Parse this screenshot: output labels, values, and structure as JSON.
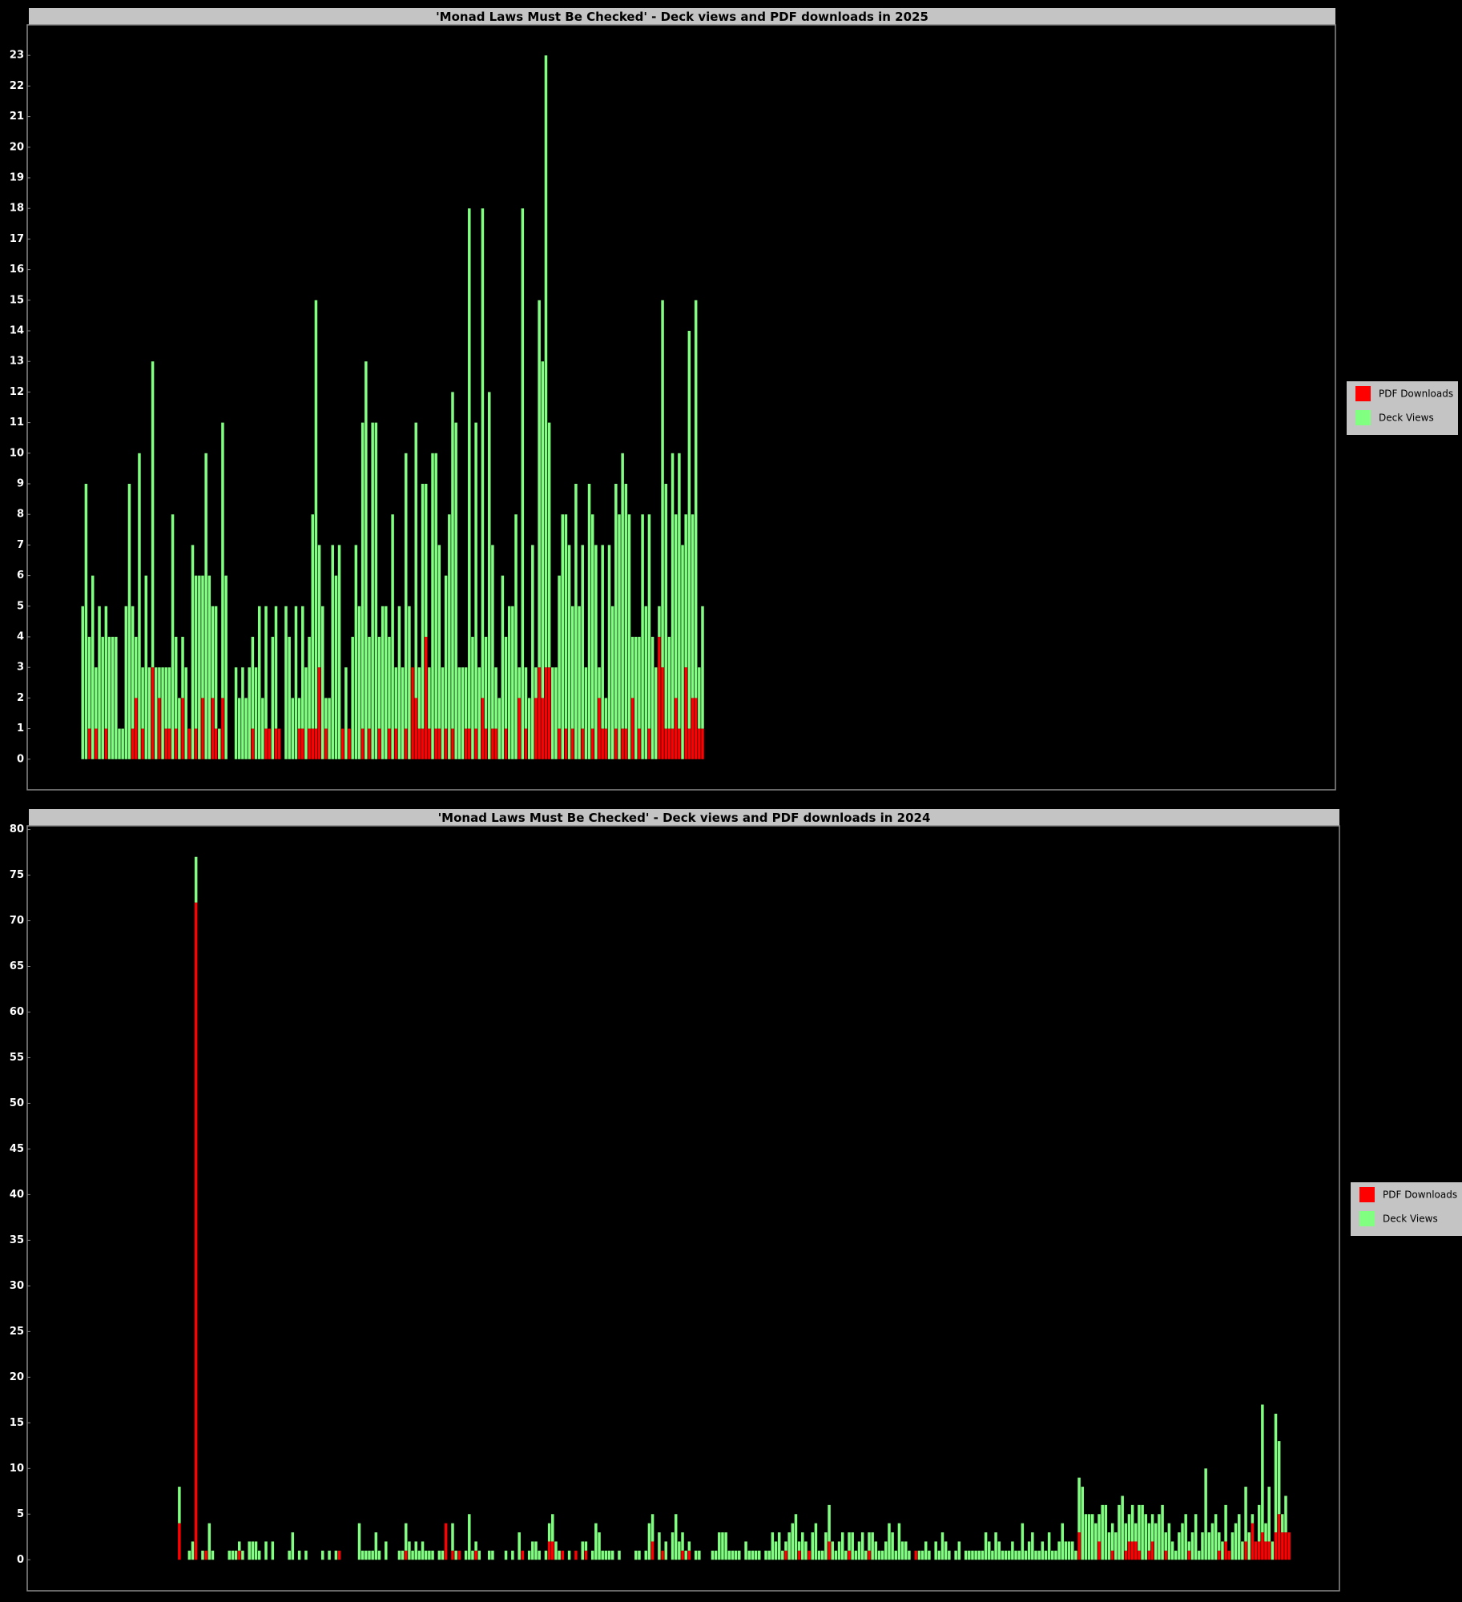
{
  "chart_data": [
    {
      "type": "bar",
      "stacked": true,
      "title": "'Monad Laws Must Be Checked' - Deck views and PDF downloads in 2025",
      "ylim": [
        -1,
        24
      ],
      "yticks": [
        0,
        1,
        2,
        3,
        4,
        5,
        6,
        7,
        8,
        9,
        10,
        11,
        12,
        13,
        14,
        15,
        16,
        17,
        18,
        19,
        20,
        21,
        22,
        23
      ],
      "grid": false,
      "legend": "right",
      "series": [
        {
          "name": "PDF Downloads",
          "color": "#ff0000",
          "values": [
            0,
            0,
            0,
            0,
            0,
            1,
            0,
            1,
            0,
            0,
            1,
            0,
            0,
            0,
            0,
            0,
            0,
            0,
            1,
            2,
            0,
            1,
            0,
            0,
            3,
            0,
            2,
            0,
            1,
            1,
            0,
            1,
            0,
            2,
            0,
            1,
            0,
            1,
            0,
            2,
            0,
            0,
            2,
            1,
            0,
            2,
            0,
            0,
            0,
            0,
            0,
            0,
            0,
            0,
            1,
            0,
            0,
            0,
            1,
            1,
            0,
            1,
            1,
            0,
            0,
            0,
            0,
            0,
            1,
            1,
            0,
            1,
            1,
            1,
            3,
            0,
            1,
            0,
            0,
            0,
            0,
            1,
            0,
            1,
            0,
            0,
            0,
            1,
            0,
            1,
            0,
            0,
            1,
            0,
            0,
            1,
            0,
            1,
            0,
            0,
            1,
            0,
            3,
            2,
            1,
            1,
            4,
            1,
            0,
            1,
            1,
            0,
            1,
            0,
            1,
            0,
            0,
            0,
            1,
            1,
            0,
            1,
            0,
            2,
            1,
            0,
            1,
            1,
            0,
            0,
            1,
            0,
            0,
            0,
            2,
            0,
            1,
            0,
            0,
            2,
            3,
            2,
            3,
            3,
            0,
            0,
            1,
            0,
            1,
            0,
            1,
            0,
            0,
            1,
            0,
            0,
            1,
            0,
            2,
            1,
            1,
            0,
            0,
            1,
            0,
            1,
            1,
            0,
            2,
            0,
            1,
            0,
            0,
            1,
            0,
            0,
            4,
            3,
            1,
            1,
            1,
            2,
            1,
            0,
            3,
            1,
            2,
            2,
            1,
            1
          ]
        },
        {
          "name": "Deck Views",
          "color": "#80ff80",
          "values": [
            0,
            0,
            0,
            5,
            9,
            3,
            6,
            2,
            5,
            4,
            4,
            4,
            4,
            4,
            1,
            1,
            5,
            9,
            4,
            2,
            10,
            2,
            6,
            3,
            10,
            3,
            1,
            3,
            2,
            2,
            8,
            3,
            2,
            2,
            3,
            0,
            7,
            5,
            6,
            4,
            10,
            6,
            3,
            4,
            1,
            9,
            6,
            0,
            0,
            3,
            2,
            3,
            2,
            3,
            3,
            3,
            5,
            2,
            4,
            0,
            4,
            4,
            0,
            0,
            5,
            4,
            2,
            5,
            1,
            4,
            3,
            3,
            7,
            14,
            4,
            5,
            1,
            2,
            7,
            6,
            7,
            0,
            3,
            0,
            4,
            7,
            5,
            10,
            13,
            3,
            11,
            11,
            3,
            5,
            5,
            3,
            8,
            2,
            5,
            3,
            9,
            5,
            0,
            9,
            2,
            8,
            5,
            2,
            10,
            9,
            6,
            3,
            5,
            8,
            11,
            11,
            3,
            3,
            2,
            17,
            4,
            10,
            3,
            16,
            3,
            12,
            6,
            2,
            2,
            6,
            3,
            5,
            5,
            8,
            1,
            18,
            2,
            2,
            7,
            1,
            12,
            11,
            20,
            8,
            3,
            3,
            5,
            8,
            7,
            7,
            4,
            9,
            5,
            6,
            3,
            9,
            7,
            7,
            1,
            6,
            1,
            7,
            5,
            8,
            8,
            9,
            8,
            8,
            2,
            4,
            3,
            8,
            5,
            7,
            4,
            3,
            1,
            12,
            8,
            3,
            9,
            6,
            9,
            7,
            5,
            13,
            6,
            13,
            2,
            4
          ]
        }
      ]
    },
    {
      "type": "bar",
      "stacked": true,
      "title": "'Monad Laws Must Be Checked' - Deck views and PDF downloads in 2024",
      "ylim": [
        -3.4,
        80.4
      ],
      "yticks": [
        0,
        5,
        10,
        15,
        20,
        25,
        30,
        35,
        40,
        45,
        50,
        55,
        60,
        65,
        70,
        75,
        80
      ],
      "grid": false,
      "legend": "right",
      "series": [
        {
          "name": "PDF Downloads",
          "color": "#ff0000",
          "values": [
            0,
            0,
            0,
            0,
            0,
            0,
            0,
            0,
            0,
            0,
            0,
            0,
            0,
            0,
            0,
            0,
            0,
            0,
            0,
            0,
            0,
            0,
            0,
            0,
            0,
            0,
            0,
            0,
            0,
            0,
            0,
            0,
            4,
            0,
            0,
            0,
            0,
            72,
            0,
            0,
            1,
            0,
            0,
            0,
            0,
            0,
            0,
            0,
            0,
            0,
            1,
            0,
            0,
            0,
            0,
            0,
            0,
            0,
            0,
            0,
            0,
            0,
            0,
            0,
            0,
            0,
            0,
            0,
            0,
            0,
            0,
            0,
            0,
            0,
            0,
            0,
            0,
            0,
            0,
            0,
            1,
            0,
            0,
            0,
            0,
            0,
            0,
            0,
            0,
            0,
            0,
            0,
            0,
            0,
            0,
            0,
            0,
            0,
            0,
            0,
            1,
            0,
            0,
            0,
            0,
            0,
            0,
            0,
            0,
            0,
            0,
            0,
            4,
            0,
            1,
            0,
            1,
            0,
            0,
            0,
            0,
            1,
            0,
            0,
            0,
            0,
            0,
            0,
            0,
            0,
            0,
            0,
            0,
            0,
            0,
            1,
            0,
            0,
            0,
            0,
            0,
            0,
            0,
            2,
            2,
            0,
            0,
            1,
            0,
            0,
            0,
            1,
            0,
            0,
            1,
            0,
            0,
            0,
            0,
            0,
            0,
            0,
            0,
            0,
            0,
            0,
            0,
            0,
            0,
            0,
            0,
            0,
            0,
            0,
            2,
            0,
            0,
            1,
            0,
            0,
            0,
            0,
            0,
            1,
            0,
            1,
            0,
            0,
            0,
            0,
            0,
            0,
            0,
            0,
            0,
            0,
            0,
            0,
            0,
            0,
            0,
            0,
            0,
            0,
            0,
            0,
            0,
            0,
            0,
            0,
            0,
            0,
            0,
            0,
            1,
            0,
            0,
            0,
            1,
            0,
            0,
            1,
            0,
            0,
            0,
            0,
            0,
            2,
            0,
            0,
            0,
            0,
            0,
            1,
            0,
            0,
            0,
            0,
            0,
            1,
            0,
            0,
            0,
            0,
            0,
            0,
            0,
            0,
            0,
            0,
            0,
            0,
            0,
            1,
            0,
            0,
            0,
            0,
            0,
            0,
            0,
            0,
            0,
            0,
            0,
            0,
            0,
            0,
            0,
            0,
            0,
            0,
            0,
            0,
            0,
            0,
            0,
            0,
            0,
            0,
            0,
            0,
            0,
            0,
            0,
            0,
            0,
            0,
            0,
            0,
            0,
            0,
            0,
            0,
            0,
            0,
            0,
            0,
            0,
            0,
            0,
            0,
            3,
            0,
            0,
            0,
            0,
            0,
            2,
            0,
            0,
            0,
            1,
            0,
            0,
            0,
            1,
            2,
            2,
            2,
            1,
            0,
            0,
            1,
            2,
            0,
            0,
            0,
            1,
            0,
            0,
            0,
            0,
            0,
            0,
            1,
            0,
            0,
            0,
            0,
            0,
            0,
            0,
            0,
            1,
            0,
            2,
            1,
            0,
            0,
            0,
            0,
            2,
            0,
            4,
            2,
            2,
            3,
            2,
            2,
            0,
            3,
            5,
            3,
            3,
            3
          ]
        },
        {
          "name": "Deck Views",
          "color": "#80ff80",
          "values": [
            0,
            0,
            0,
            0,
            0,
            0,
            0,
            0,
            0,
            0,
            0,
            0,
            0,
            0,
            0,
            0,
            0,
            0,
            0,
            0,
            0,
            0,
            0,
            0,
            0,
            0,
            0,
            0,
            0,
            0,
            0,
            0,
            4,
            0,
            0,
            1,
            2,
            5,
            0,
            1,
            0,
            4,
            1,
            0,
            0,
            0,
            0,
            1,
            1,
            1,
            1,
            1,
            0,
            2,
            2,
            2,
            1,
            0,
            2,
            0,
            2,
            0,
            0,
            0,
            0,
            1,
            3,
            0,
            1,
            0,
            1,
            0,
            0,
            0,
            0,
            1,
            0,
            1,
            0,
            1,
            0,
            0,
            0,
            0,
            0,
            0,
            4,
            1,
            1,
            1,
            1,
            3,
            1,
            0,
            2,
            0,
            0,
            0,
            1,
            1,
            3,
            2,
            1,
            2,
            1,
            2,
            1,
            1,
            1,
            0,
            1,
            1,
            0,
            0,
            3,
            1,
            0,
            0,
            1,
            5,
            1,
            1,
            1,
            0,
            0,
            1,
            1,
            0,
            0,
            0,
            1,
            0,
            1,
            0,
            3,
            0,
            0,
            1,
            2,
            2,
            1,
            0,
            1,
            2,
            3,
            2,
            1,
            0,
            0,
            1,
            0,
            0,
            0,
            2,
            1,
            0,
            1,
            4,
            3,
            1,
            1,
            1,
            1,
            0,
            1,
            0,
            0,
            0,
            0,
            1,
            1,
            0,
            1,
            4,
            3,
            0,
            3,
            0,
            2,
            0,
            3,
            5,
            2,
            2,
            1,
            1,
            0,
            1,
            1,
            0,
            0,
            0,
            1,
            1,
            3,
            3,
            3,
            1,
            1,
            1,
            1,
            0,
            2,
            1,
            1,
            1,
            1,
            0,
            1,
            1,
            3,
            2,
            3,
            1,
            1,
            3,
            4,
            5,
            1,
            3,
            2,
            0,
            3,
            4,
            1,
            1,
            3,
            4,
            2,
            1,
            2,
            3,
            1,
            2,
            3,
            1,
            2,
            3,
            1,
            2,
            3,
            2,
            1,
            1,
            2,
            4,
            3,
            1,
            4,
            2,
            2,
            1,
            0,
            0,
            1,
            1,
            2,
            1,
            0,
            2,
            1,
            3,
            2,
            1,
            0,
            1,
            2,
            0,
            1,
            1,
            1,
            1,
            1,
            1,
            3,
            2,
            1,
            3,
            2,
            1,
            1,
            1,
            2,
            1,
            1,
            4,
            1,
            2,
            3,
            1,
            1,
            2,
            1,
            3,
            1,
            1,
            2,
            4,
            2,
            2,
            2,
            1,
            6,
            8,
            5,
            5,
            5,
            4,
            3,
            6,
            6,
            3,
            3,
            3,
            6,
            7,
            3,
            3,
            4,
            2,
            5,
            6,
            5,
            3,
            3,
            4,
            5,
            6,
            2,
            4,
            2,
            1,
            3,
            4,
            5,
            1,
            3,
            5,
            1,
            3,
            10,
            3,
            4,
            5,
            2,
            2,
            4,
            0,
            3,
            4,
            5,
            2,
            6,
            3,
            1,
            0,
            4,
            14,
            2,
            6,
            2,
            13,
            8,
            2,
            4,
            0
          ]
        }
      ]
    }
  ]
}
